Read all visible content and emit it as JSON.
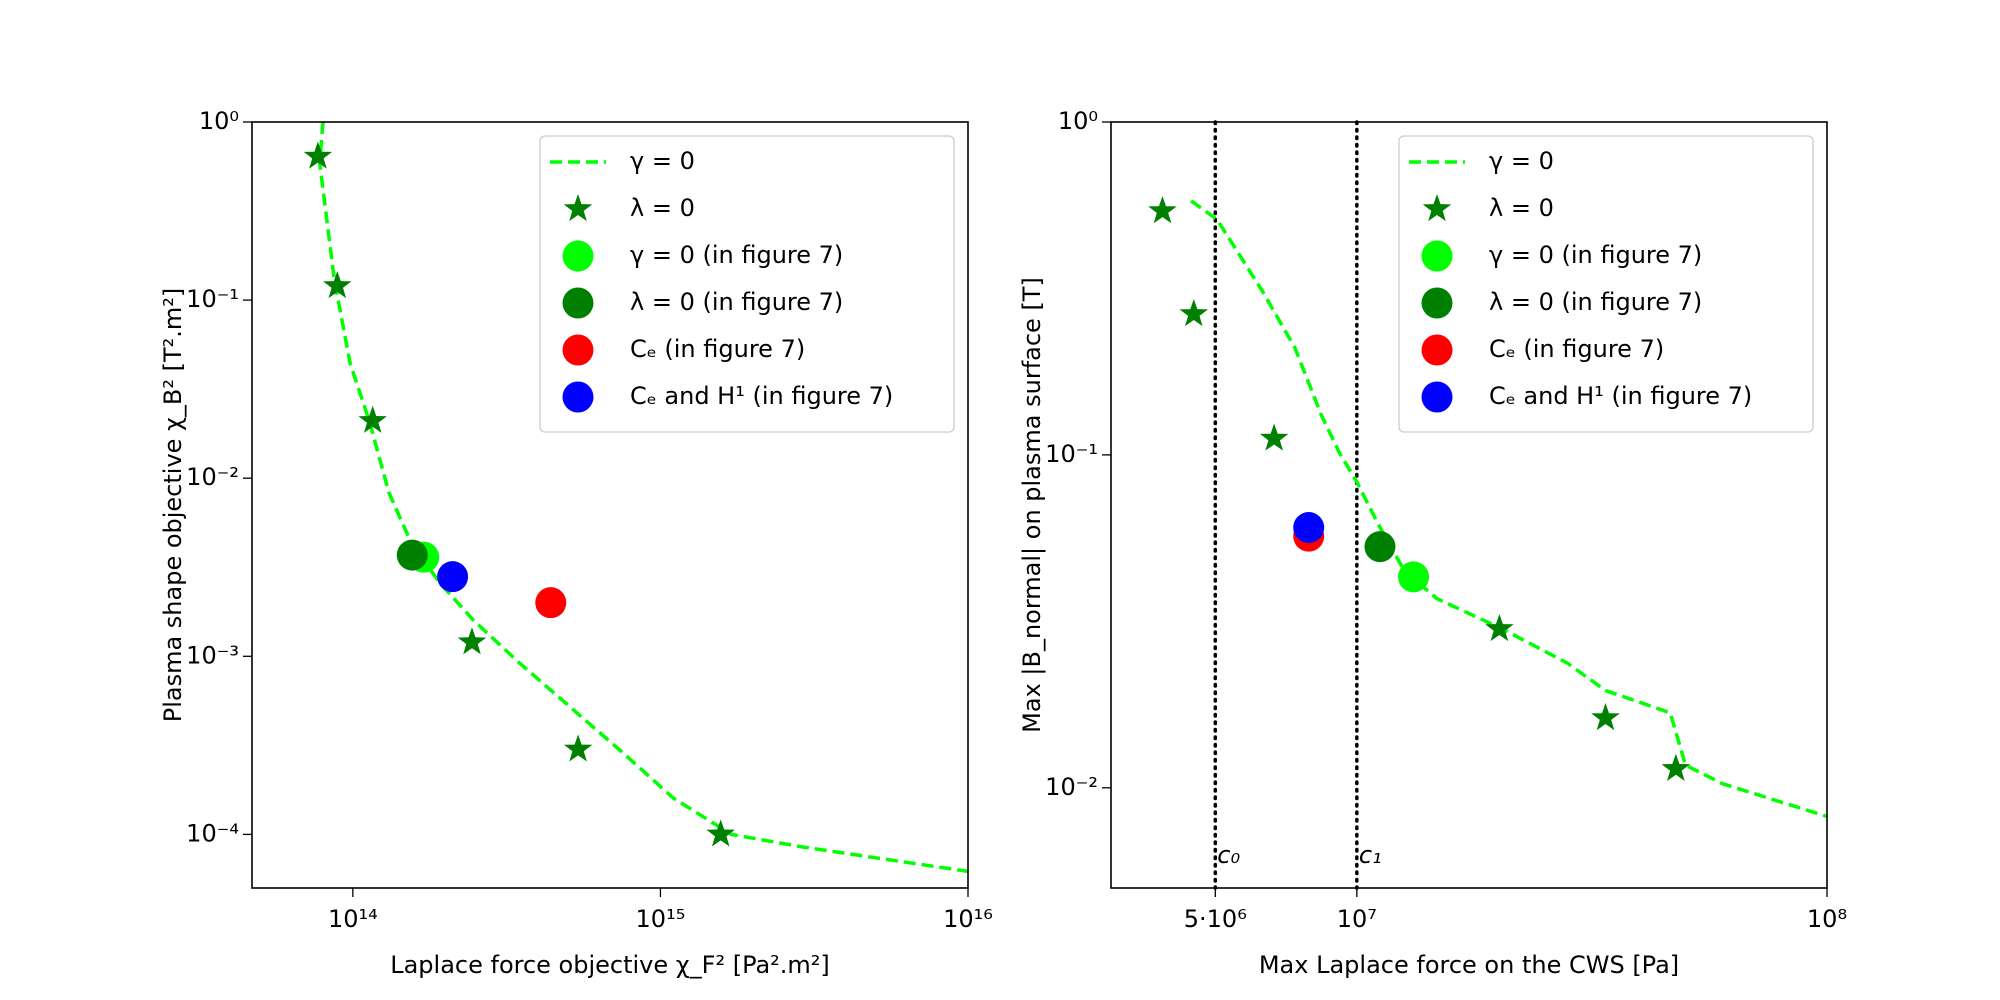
{
  "chart_data": [
    {
      "type": "scatter",
      "xlog": true,
      "ylog": true,
      "x_label": "Laplace force objective χ_F² [Pa².m²]",
      "y_label": "Plasma shape objective χ_B² [T².m²]",
      "xlim": [
        47000000000000.0,
        1e+16
      ],
      "ylim": [
        5e-05,
        1
      ],
      "xticks": [
        {
          "value": 100000000000000.0,
          "label": "10¹⁴"
        },
        {
          "value": 1000000000000000.0,
          "label": "10¹⁵"
        },
        {
          "value": 1e+16,
          "label": "10¹⁶"
        }
      ],
      "yticks": [
        {
          "value": 1,
          "label": "10⁰"
        },
        {
          "value": 0.1,
          "label": "10⁻¹"
        },
        {
          "value": 0.01,
          "label": "10⁻²"
        },
        {
          "value": 0.001,
          "label": "10⁻³"
        },
        {
          "value": 0.0001,
          "label": "10⁻⁴"
        }
      ],
      "legend": "upper right",
      "series": [
        {
          "name": "γ = 0",
          "kind": "dashed-line",
          "color": "#00ff00",
          "x": [
            80000000000000.0,
            78000000000000.0,
            87000000000000.0,
            98000000000000.0,
            113000000000000.0,
            131000000000000.0,
            156000000000000.0,
            193000000000000.0,
            246000000000000.0,
            345000000000000.0,
            508000000000000.0,
            750000000000000.0,
            1100000000000000.0,
            1700000000000000.0,
            2900000000000000.0,
            1e+16
          ],
          "values": [
            1.0,
            0.59,
            0.13,
            0.044,
            0.021,
            0.0083,
            0.0042,
            0.00255,
            0.0016,
            0.00093,
            0.00052,
            0.00029,
            0.00016,
            0.0001,
            8.5e-05,
            6.2e-05
          ]
        },
        {
          "name": "λ = 0",
          "kind": "star",
          "color": "#008000",
          "x": [
            77000000000000.0,
            89000000000000.0,
            116000000000000.0,
            244000000000000.0,
            540000000000000.0,
            1570000000000000.0
          ],
          "values": [
            0.64,
            0.12,
            0.021,
            0.0012,
            0.0003,
            0.0001
          ]
        },
        {
          "name": "γ = 0 (in figure 7)",
          "kind": "circle",
          "color": "#00ff00",
          "x": [
            170000000000000.0
          ],
          "values": [
            0.0036
          ]
        },
        {
          "name": "λ = 0 (in figure 7)",
          "kind": "circle",
          "color": "#008000",
          "x": [
            156000000000000.0
          ],
          "values": [
            0.0037
          ]
        },
        {
          "name": "Cₑ (in figure 7)",
          "kind": "circle",
          "color": "#ff0000",
          "x": [
            440000000000000.0
          ],
          "values": [
            0.002
          ]
        },
        {
          "name": "Cₑ and H¹ (in figure 7)",
          "kind": "circle",
          "color": "#0000ff",
          "x": [
            211000000000000.0
          ],
          "values": [
            0.0028
          ]
        }
      ]
    },
    {
      "type": "scatter",
      "xlog": true,
      "ylog": true,
      "x_label": "Max Laplace force on the CWS [Pa]",
      "y_label": "Max |B_normal| on plasma surface [T]",
      "xlim": [
        3000000.0,
        100000000.0
      ],
      "ylim": [
        0.005,
        1
      ],
      "xticks": [
        {
          "value": 5000000.0,
          "label": "5·10⁶"
        },
        {
          "value": 10000000.0,
          "label": "10⁷"
        },
        {
          "value": 100000000.0,
          "label": "10⁸"
        }
      ],
      "yticks": [
        {
          "value": 1,
          "label": "10⁰"
        },
        {
          "value": 0.1,
          "label": "10⁻¹"
        },
        {
          "value": 0.01,
          "label": "10⁻²"
        }
      ],
      "legend": "upper right",
      "vlines": [
        {
          "x": 5000000.0,
          "label": "c₀"
        },
        {
          "x": 10000000.0,
          "label": "c₁"
        }
      ],
      "series": [
        {
          "name": "γ = 0",
          "kind": "dashed-line",
          "color": "#00ff00",
          "x": [
            4440000.0,
            5040000.0,
            6300000.0,
            7380000.0,
            8400000.0,
            9200000.0,
            10000000.0,
            11100000.0,
            12600000.0,
            14800000.0,
            20400000.0,
            28000000.0,
            33800000.0,
            46400000.0,
            50000000.0,
            59800000.0,
            100000000.0
          ],
          "values": [
            0.58,
            0.51,
            0.31,
            0.21,
            0.132,
            0.101,
            0.083,
            0.062,
            0.045,
            0.037,
            0.03,
            0.0237,
            0.0196,
            0.0168,
            0.0117,
            0.0103,
            0.0082
          ]
        },
        {
          "name": "λ = 0",
          "kind": "star",
          "color": "#008000",
          "x": [
            3860000.0,
            4500000.0,
            6670000.0,
            20100000.0,
            33800000.0,
            47700000.0
          ],
          "values": [
            0.54,
            0.265,
            0.112,
            0.03,
            0.0162,
            0.0114
          ]
        },
        {
          "name": "γ = 0 (in figure 7)",
          "kind": "circle",
          "color": "#00ff00",
          "x": [
            13200000.0
          ],
          "values": [
            0.043
          ]
        },
        {
          "name": "λ = 0 (in figure 7)",
          "kind": "circle",
          "color": "#008000",
          "x": [
            11200000.0
          ],
          "values": [
            0.053
          ]
        },
        {
          "name": "Cₑ (in figure 7)",
          "kind": "circle",
          "color": "#ff0000",
          "x": [
            7900000.0
          ],
          "values": [
            0.057
          ]
        },
        {
          "name": "Cₑ and H¹ (in figure 7)",
          "kind": "circle",
          "color": "#0000ff",
          "x": [
            7900000.0
          ],
          "values": [
            0.0605
          ]
        }
      ]
    }
  ]
}
